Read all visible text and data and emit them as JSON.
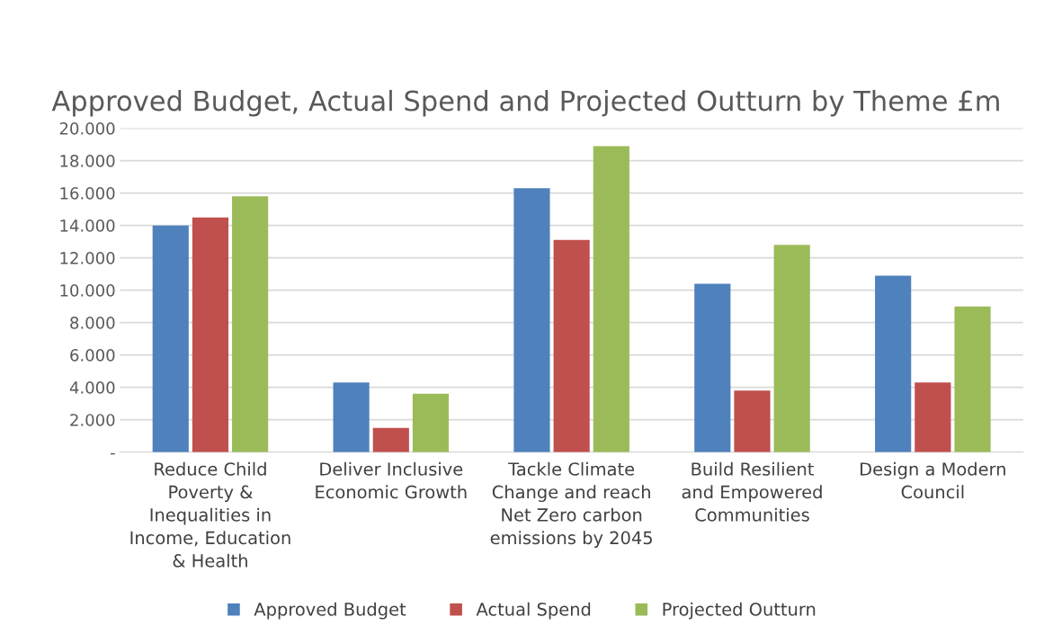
{
  "chart_data": {
    "type": "bar",
    "title": "Approved Budget, Actual Spend and Projected Outturn by Theme £m",
    "categories": [
      "Reduce Child Poverty & Inequalities in Income, Education & Health",
      "Deliver Inclusive Economic Growth",
      "Tackle Climate Change and reach Net Zero carbon emissions by 2045",
      "Build Resilient and Empowered Communities",
      "Design a Modern Council"
    ],
    "series": [
      {
        "name": "Approved Budget",
        "color": "#4f81bd",
        "values": [
          14.0,
          4.3,
          16.3,
          10.4,
          10.9
        ]
      },
      {
        "name": "Actual Spend",
        "color": "#c0504d",
        "values": [
          14.5,
          1.5,
          13.1,
          3.8,
          4.3
        ]
      },
      {
        "name": "Projected Outturn",
        "color": "#9bbb59",
        "values": [
          15.8,
          3.6,
          18.9,
          12.8,
          9.0
        ]
      }
    ],
    "ylim": [
      0,
      20
    ],
    "yticks": [
      {
        "value": 0,
        "label": "-"
      },
      {
        "value": 2,
        "label": "2.000"
      },
      {
        "value": 4,
        "label": "4.000"
      },
      {
        "value": 6,
        "label": "6.000"
      },
      {
        "value": 8,
        "label": "8.000"
      },
      {
        "value": 10,
        "label": "10.000"
      },
      {
        "value": 12,
        "label": "12.000"
      },
      {
        "value": 14,
        "label": "14.000"
      },
      {
        "value": 16,
        "label": "16.000"
      },
      {
        "value": 18,
        "label": "18.000"
      },
      {
        "value": 20,
        "label": "20.000"
      }
    ],
    "grid": "y",
    "legend": "bottom"
  }
}
